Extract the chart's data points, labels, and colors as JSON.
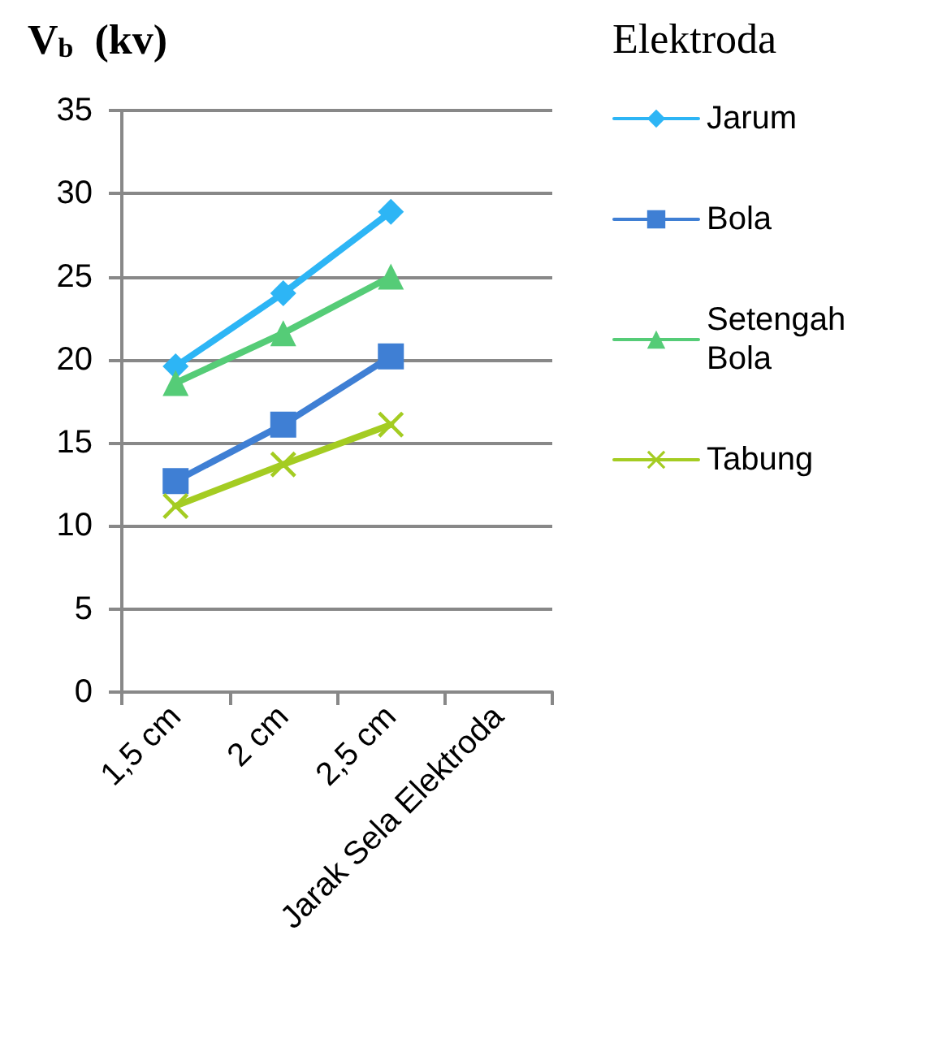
{
  "chart_data": {
    "type": "line",
    "ylabel": "V$_{b}$  (kv)",
    "legend_title": "Elektroda",
    "categories": [
      "1,5 cm",
      "2 cm",
      "2,5 cm",
      "Jarak Sela Elektroda"
    ],
    "series": [
      {
        "name": "Jarum",
        "color": "#2db5f5",
        "marker": "diamond",
        "values": [
          19.6,
          24,
          28.9,
          null
        ]
      },
      {
        "name": "Bola",
        "color": "#3f7fd4",
        "marker": "square",
        "values": [
          12.7,
          16.1,
          20.2,
          null
        ]
      },
      {
        "name": "Setengah Bola",
        "color": "#55cc77",
        "marker": "triangle",
        "values": [
          18.6,
          21.6,
          25,
          null
        ]
      },
      {
        "name": "Tabung",
        "color": "#a4cc22",
        "marker": "cross",
        "values": [
          11.2,
          13.7,
          16.1,
          null
        ]
      }
    ],
    "ylim": [
      0,
      35
    ],
    "yticks": [
      0,
      5,
      10,
      15,
      20,
      25,
      30,
      35
    ],
    "grid": "y",
    "legend": "right",
    "line_style": "solid"
  }
}
